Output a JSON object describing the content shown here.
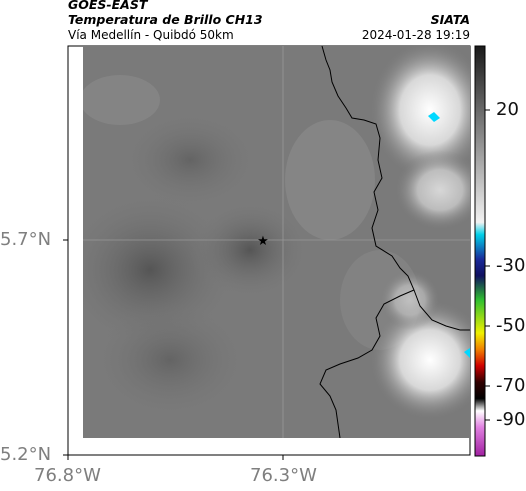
{
  "header": {
    "satellite": "GOES-EAST",
    "product": "Temperatura de Brillo CH13",
    "region": "Vía Medellín - Quibdó 50km",
    "source": "SIATA",
    "datetime": "2024-01-28 19:19"
  },
  "axes": {
    "y_ticks": [
      "5.7°N",
      "5.2°N"
    ],
    "x_ticks": [
      "76.8°W",
      "76.3°W"
    ],
    "tick_color": "#7f7f7f"
  },
  "colorbar": {
    "ticks": [
      "20",
      "-30",
      "-50",
      "-70",
      "-90"
    ],
    "colors": {
      "gray_warm": "#2a2a2a",
      "gray_cold": "#f0f0f0",
      "cyan": "#00c8e0",
      "blue": "#0a1a8a",
      "green": "#18c018",
      "yellow": "#f0f000",
      "red": "#e00000",
      "black": "#000000",
      "white": "#ffffff",
      "magenta": "#c040c0"
    }
  },
  "map": {
    "marker_icon": "star-icon",
    "background_gray": "#7b7b7b",
    "cloud_color": "#f4f4f4",
    "cyan_patch": "#00d8ff",
    "border_color": "#000000"
  }
}
